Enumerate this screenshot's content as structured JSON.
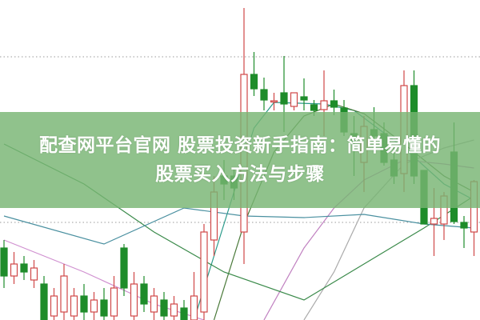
{
  "banner": {
    "title_line1": "配查网平台官网 股票投资新手指南：简单易懂的",
    "title_line2": "股票买入方法与步骤"
  },
  "colors": {
    "up": "#d04848",
    "down": "#1e8c2a",
    "banner": "#78b473",
    "grid": "#999999"
  },
  "chart_data": {
    "type": "candlestick",
    "title": "",
    "grid": "dotted horizontal",
    "ylim": [
      0,
      400
    ],
    "candles": [
      [
        90,
        55,
        100,
        40
      ],
      [
        55,
        70,
        85,
        45
      ],
      [
        70,
        60,
        80,
        50
      ],
      [
        50,
        65,
        75,
        40
      ],
      [
        45,
        0,
        55,
        0
      ],
      [
        5,
        30,
        40,
        0
      ],
      [
        10,
        55,
        70,
        0
      ],
      [
        5,
        30,
        40,
        0
      ],
      [
        30,
        10,
        45,
        0
      ],
      [
        10,
        25,
        35,
        0
      ],
      [
        25,
        5,
        40,
        0
      ],
      [
        5,
        40,
        55,
        0
      ],
      [
        90,
        40,
        95,
        30
      ],
      [
        5,
        45,
        60,
        0
      ],
      [
        45,
        20,
        55,
        10
      ],
      [
        10,
        30,
        40,
        0
      ],
      [
        25,
        5,
        35,
        0
      ],
      [
        5,
        20,
        30,
        0
      ],
      [
        15,
        0,
        25,
        0
      ],
      [
        0,
        30,
        60,
        0
      ],
      [
        10,
        110,
        120,
        0
      ],
      [
        100,
        160,
        180,
        80
      ],
      [
        180,
        170,
        200,
        150
      ],
      [
        180,
        165,
        190,
        150
      ],
      [
        110,
        307,
        390,
        70
      ],
      [
        307,
        289,
        335,
        280
      ],
      [
        288,
        275,
        303,
        262
      ],
      [
        273,
        274,
        284,
        262
      ],
      [
        284,
        270,
        330,
        235
      ],
      [
        267,
        284,
        284,
        262
      ],
      [
        279,
        275,
        302,
        262
      ],
      [
        269,
        262,
        275,
        255
      ],
      [
        263,
        274,
        312,
        230
      ],
      [
        274,
        266,
        288,
        256
      ],
      [
        265,
        235,
        275,
        230
      ],
      [
        233,
        222,
        255,
        180
      ],
      [
        197,
        242,
        255,
        160
      ],
      [
        238,
        230,
        266,
        215
      ],
      [
        233,
        197,
        247,
        193
      ],
      [
        200,
        180,
        215,
        170
      ],
      [
        183,
        293,
        312,
        160
      ],
      [
        293,
        180,
        312,
        170
      ],
      [
        187,
        120,
        187,
        120
      ],
      [
        120,
        127,
        165,
        80
      ],
      [
        120,
        155,
        160,
        100
      ],
      [
        210,
        123,
        247,
        120
      ],
      [
        122,
        115,
        130,
        90
      ],
      [
        110,
        173,
        175,
        80
      ]
    ],
    "moving_averages": [
      {
        "color": "#2a9a8a",
        "points": [
          [
            19,
            0
          ],
          [
            22,
            120
          ],
          [
            25,
            240
          ],
          [
            27,
            272
          ],
          [
            32,
            270
          ],
          [
            35,
            262
          ],
          [
            40,
            215
          ],
          [
            44,
            170
          ],
          [
            47,
            150
          ]
        ]
      },
      {
        "color": "#4a7a3a",
        "points": [
          [
            21,
            0
          ],
          [
            24,
            120
          ],
          [
            27,
            210
          ],
          [
            30,
            255
          ],
          [
            33,
            270
          ],
          [
            36,
            258
          ],
          [
            40,
            220
          ],
          [
            44,
            180
          ],
          [
            47,
            160
          ]
        ]
      },
      {
        "color": "#c080c0",
        "points": [
          [
            26,
            0
          ],
          [
            30,
            90
          ],
          [
            33,
            140
          ],
          [
            36,
            175
          ],
          [
            40,
            200
          ],
          [
            44,
            195
          ],
          [
            47,
            190
          ]
        ]
      },
      {
        "color": "#aaaaaa",
        "points": [
          [
            30,
            0
          ],
          [
            33,
            60
          ],
          [
            36,
            140
          ],
          [
            40,
            195
          ],
          [
            44,
            215
          ],
          [
            47,
            225
          ]
        ]
      },
      {
        "color": "#3a8a4a",
        "points": [
          [
            0,
            220
          ],
          [
            8,
            170
          ],
          [
            15,
            110
          ],
          [
            22,
            60
          ],
          [
            30,
            25
          ],
          [
            36,
            70
          ],
          [
            42,
            115
          ],
          [
            47,
            155
          ]
        ]
      },
      {
        "color": "#4a90a0",
        "points": [
          [
            0,
            130
          ],
          [
            10,
            95
          ],
          [
            18,
            140
          ],
          [
            24,
            130
          ],
          [
            30,
            128
          ],
          [
            36,
            132
          ],
          [
            42,
            120
          ],
          [
            47,
            115
          ]
        ]
      },
      {
        "color": "#d090d0",
        "points": [
          [
            0,
            100
          ],
          [
            8,
            60
          ],
          [
            15,
            20
          ],
          [
            20,
            0
          ]
        ]
      }
    ]
  }
}
